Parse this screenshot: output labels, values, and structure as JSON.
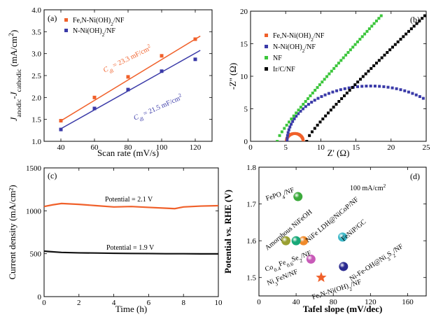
{
  "chart_data": [
    {
      "panel": "(a)",
      "type": "scatter",
      "xlabel": "Scan rate (mV/s)",
      "ylabel": "J_anodic - J_cathodic (mA/cm²)",
      "xlim": [
        30,
        130
      ],
      "ylim": [
        1.0,
        4.0
      ],
      "xticks": [
        "40",
        "60",
        "80",
        "100",
        "120"
      ],
      "yticks": [
        "1.0",
        "1.5",
        "2.0",
        "2.5",
        "3.0",
        "3.5",
        "4.0"
      ],
      "legend_position": "top-left",
      "series": [
        {
          "name": "Fe,N-Ni(OH)2/NF",
          "color": "#f0602a",
          "x": [
            40,
            60,
            80,
            100,
            120
          ],
          "y": [
            1.47,
            2.0,
            2.47,
            2.95,
            3.33
          ],
          "fit": {
            "slope": 0.02329,
            "intercept": 0.536
          },
          "annotation": "Cdl = 23.3 mF/cm²"
        },
        {
          "name": "N-Ni(OH)2/NF",
          "color": "#3a3aa8",
          "x": [
            40,
            60,
            80,
            100,
            120
          ],
          "y": [
            1.27,
            1.75,
            2.18,
            2.6,
            2.87
          ],
          "fit": {
            "slope": 0.02153,
            "intercept": 0.426
          },
          "annotation": "Cdl = 21.5 mF/cm²"
        }
      ]
    },
    {
      "panel": "(b)",
      "type": "scatter",
      "xlabel": "Z' (Ω)",
      "ylabel": "-Z'' (Ω)",
      "xlim": [
        0,
        25
      ],
      "ylim": [
        0,
        20
      ],
      "xticks": [
        "0",
        "5",
        "10",
        "15",
        "20",
        "25"
      ],
      "yticks": [
        "0",
        "5",
        "10",
        "15",
        "20"
      ],
      "legend_position": "top-left",
      "series": [
        {
          "name": "Fe,N-Ni(OH)2/NF",
          "color": "#f0602a",
          "shape": "semicircle",
          "center": [
            6.3,
            0
          ],
          "radius": 1.2
        },
        {
          "name": "N-Ni(OH)2/NF",
          "color": "#3a3aa8",
          "shape": "arc",
          "x0": 5.2,
          "x1": 29.0,
          "top": 8.5
        },
        {
          "name": "NF",
          "color": "#3cc63c",
          "shape": "capacitive",
          "x0": 3.8,
          "x1": 18.6,
          "ymax": 19.3
        },
        {
          "name": "Ir/C/NF",
          "color": "#000000",
          "shape": "capacitive",
          "x0": 8.0,
          "x1": 24.8,
          "ymax": 19.3
        }
      ]
    },
    {
      "panel": "(c)",
      "type": "line",
      "xlabel": "Time (h)",
      "ylabel": "Current density (mA/cm²)",
      "xlim": [
        0,
        10
      ],
      "ylim": [
        0,
        1500
      ],
      "xticks": [
        "0",
        "2",
        "4",
        "6",
        "8",
        "10"
      ],
      "yticks": [
        "0",
        "500",
        "1000",
        "1500"
      ],
      "series": [
        {
          "name": "Potential = 2.1 V",
          "color": "#f0602a",
          "x": [
            0,
            0.5,
            1,
            2,
            3,
            4,
            5,
            6,
            7,
            7.5,
            8,
            9,
            10
          ],
          "y": [
            1050,
            1070,
            1085,
            1075,
            1060,
            1045,
            1050,
            1040,
            1030,
            1025,
            1045,
            1055,
            1060
          ]
        },
        {
          "name": "Potential = 1.9 V",
          "color": "#111111",
          "x": [
            0,
            0.3,
            1,
            2,
            3,
            4,
            5,
            6,
            7,
            8,
            9,
            10
          ],
          "y": [
            530,
            525,
            515,
            510,
            508,
            505,
            503,
            502,
            500,
            500,
            498,
            498
          ]
        }
      ]
    },
    {
      "panel": "(d)",
      "type": "scatter",
      "title": "100 mA/cm²",
      "xlabel": "Tafel slope (mV/dec)",
      "ylabel": "Potential vs. RHE (V)",
      "xlim": [
        0,
        180
      ],
      "ylim": [
        1.45,
        1.8
      ],
      "xticks": [
        "0",
        "40",
        "80",
        "120",
        "160"
      ],
      "yticks": [
        "1.5",
        "1.6",
        "1.7",
        "1.8"
      ],
      "points": [
        {
          "label": "FePO4/NF",
          "x": 42,
          "y": 1.72,
          "color": "#3caa3c",
          "shape": "circle"
        },
        {
          "label": "Amorphous NiFeOH",
          "x": 29,
          "y": 1.6,
          "color": "#9aa032",
          "shape": "circle"
        },
        {
          "label": "NiFe LDH@NiCoP/NF",
          "x": 48,
          "y": 1.6,
          "color": "#f08a2a",
          "shape": "circle"
        },
        {
          "label": "Co0.4Fe0.6Se2/NF",
          "x": 40,
          "y": 1.6,
          "color": "#18a878",
          "shape": "circle"
        },
        {
          "label": "FeNiP/GC",
          "x": 90,
          "y": 1.61,
          "color": "#3cb8c8",
          "shape": "circle"
        },
        {
          "label": "Ni3FeN/NF",
          "x": 56,
          "y": 1.55,
          "color": "#c85ab8",
          "shape": "circle"
        },
        {
          "label": "Ni-Fe-OH@Ni3S2/NF",
          "x": 91,
          "y": 1.53,
          "color": "#2a2a90",
          "shape": "circle"
        },
        {
          "label": "Fe,N-Ni(OH)2/NF",
          "x": 67,
          "y": 1.5,
          "color": "#f0602a",
          "shape": "star"
        }
      ]
    }
  ]
}
